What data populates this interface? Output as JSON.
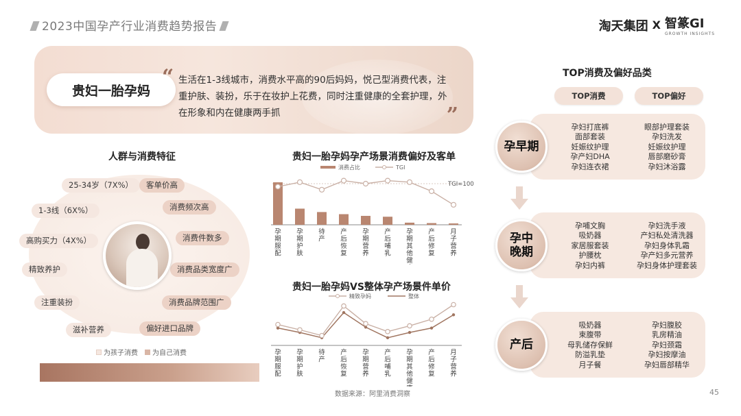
{
  "header": {
    "report_title": "2023中国孕产行业消费趋势报告",
    "brand_left": "淘天集团",
    "brand_x": "X",
    "brand_right": "智篆GI",
    "brand_sub": "GROWTH INSIGHTS"
  },
  "persona": {
    "name": "贵妇一胎孕妈",
    "description": "生活在1-3线城市，消费水平高的90后妈妈，悦己型消费代表，注重护肤、装扮，乐于在妆护上花费，同时注重健康的全套护理，外在形象和内在健康两手抓"
  },
  "traits": {
    "title": "人群与消费特征",
    "kid_items": [
      "25-34岁（7X%）",
      "1-3线（6X%）",
      "高购买力（4X%）",
      "精致养护",
      "注重装扮",
      "滋补营养"
    ],
    "self_items": [
      "客单价高",
      "消费频次高",
      "消费件数多",
      "消费品类宽度广",
      "消费品牌范围广",
      "偏好进口品牌"
    ],
    "legend_kid": "为孩子消费",
    "legend_self": "为自己消费",
    "colors": {
      "kid": "#f5e7e0",
      "self": "#ecd2c6"
    }
  },
  "colors": {
    "accent": "#b98670",
    "accent_dark": "#9b6e5c",
    "line_light": "#c9b0a5",
    "line_dark": "#a07560"
  },
  "chart_data": [
    {
      "type": "bar",
      "title": "贵妇一胎孕妈孕产场景消费偏好及客单",
      "categories": [
        "孕期服配",
        "孕期护肤",
        "待产",
        "产后恢复",
        "孕期营养",
        "产后哺乳",
        "孕期其他健康（防辐射）",
        "产后修复",
        "月子营养"
      ],
      "series": [
        {
          "name": "消费占比",
          "kind": "bar",
          "values": [
            100,
            38,
            30,
            25,
            21,
            19,
            5,
            4,
            2
          ]
        },
        {
          "name": "TGI",
          "kind": "line",
          "values": [
            98,
            101,
            96,
            102,
            100,
            102,
            101,
            95,
            86
          ]
        }
      ],
      "reference": {
        "label": "TGI=100",
        "value": 100
      },
      "xlabel": "",
      "ylabel": "",
      "legend": "top"
    },
    {
      "type": "line",
      "title": "贵妇一胎孕妈VS整体孕产场景件单价",
      "categories": [
        "孕期服配",
        "孕期护肤",
        "待产",
        "产后恢复",
        "孕期营养",
        "产后哺乳",
        "孕期其他健康（防辐射）",
        "产后修复",
        "月子营养"
      ],
      "series": [
        {
          "name": "精致孕妈",
          "values": [
            38,
            26,
            13,
            80,
            40,
            22,
            35,
            50,
            83
          ]
        },
        {
          "name": "整体",
          "values": [
            30,
            20,
            8,
            65,
            32,
            8,
            20,
            30,
            60
          ]
        }
      ],
      "xlabel": "",
      "ylabel": "",
      "legend": "top"
    }
  ],
  "top_products": {
    "title": "TOP消费及偏好品类",
    "col_consume": "TOP消费",
    "col_prefer": "TOP偏好",
    "stages": [
      {
        "name_lines": [
          "孕早期"
        ],
        "consume": [
          "孕妇打底裤",
          "面部套装",
          "妊娠纹护理",
          "孕产妇DHA",
          "孕妇连衣裙"
        ],
        "prefer": [
          "眼部护理套装",
          "孕妇洗发",
          "妊娠纹护理",
          "唇部磨砂膏",
          "孕妇沐浴露"
        ]
      },
      {
        "name_lines": [
          "孕中",
          "晚期"
        ],
        "consume": [
          "孕哺文胸",
          "吸奶器",
          "家居服套装",
          "护腰枕",
          "孕妇内裤"
        ],
        "prefer": [
          "孕妇洗手液",
          "产妇私处清洗器",
          "孕妇身体乳霜",
          "孕产妇多元营养",
          "孕妇身体护理套装"
        ]
      },
      {
        "name_lines": [
          "产后"
        ],
        "consume": [
          "吸奶器",
          "束腹带",
          "母乳储存保鲜",
          "防溢乳垫",
          "月子餐"
        ],
        "prefer": [
          "孕妇腹胶",
          "乳房精油",
          "孕妇颈霜",
          "孕妇按摩油",
          "孕妇唇部精华"
        ]
      }
    ]
  },
  "footer": {
    "source": "数据来源：阿里消费洞察",
    "page": "45"
  }
}
